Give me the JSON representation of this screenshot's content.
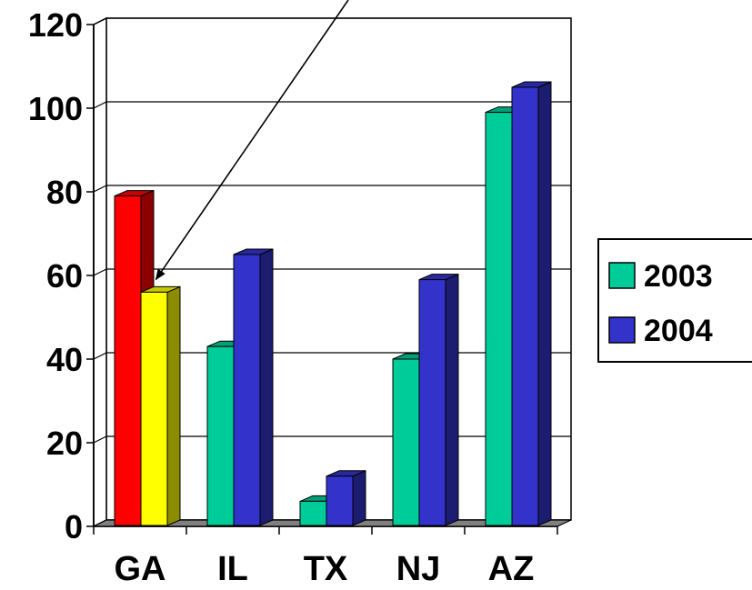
{
  "chart_data": {
    "type": "bar",
    "bar_style": "3d",
    "categories": [
      "GA",
      "IL",
      "TX",
      "NJ",
      "AZ"
    ],
    "series": [
      {
        "name": "2003",
        "color": "#00cc99",
        "values": [
          79,
          43,
          6,
          40,
          99
        ]
      },
      {
        "name": "2004",
        "color": "#3333cc",
        "values": [
          56,
          65,
          12,
          59,
          105
        ]
      }
    ],
    "highlight": [
      {
        "category": "GA",
        "series": "2003",
        "color": "#ff0000"
      },
      {
        "category": "GA",
        "series": "2004",
        "color": "#ffff00"
      }
    ],
    "annotation_arrow": {
      "target_category": "GA",
      "target_series": "2004"
    },
    "ylim": [
      0,
      120
    ],
    "yticks": [
      0,
      20,
      40,
      60,
      80,
      100,
      120
    ],
    "grid": true,
    "legend_position": "right",
    "title": "",
    "xlabel": "",
    "ylabel": ""
  }
}
